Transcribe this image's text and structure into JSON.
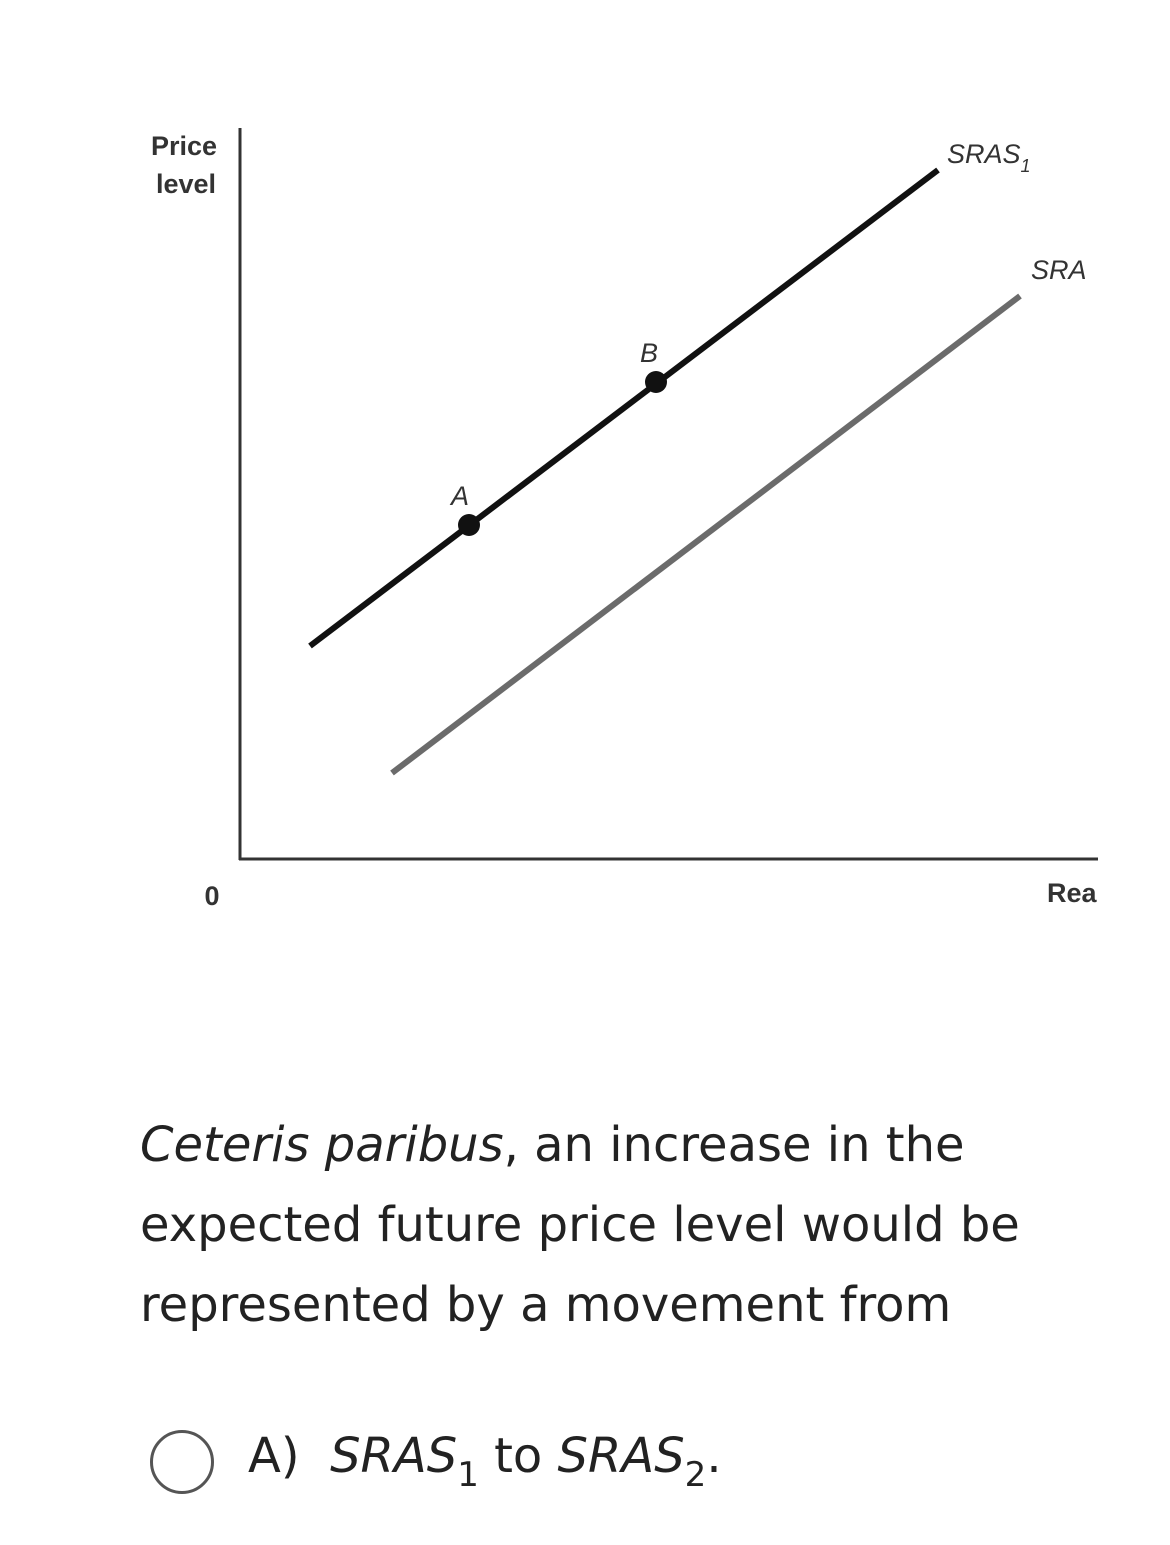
{
  "graph": {
    "y_axis_label_line1": "Price",
    "y_axis_label_line2": "level",
    "origin_label": "0",
    "x_axis_label": "Rea",
    "curves": [
      {
        "label_main": "SRAS",
        "label_sub": "1",
        "color": "#111111"
      },
      {
        "label_main": "SRA",
        "label_sub": "",
        "color": "#6b6b6b"
      }
    ],
    "points": [
      {
        "label": "A"
      },
      {
        "label": "B"
      }
    ]
  },
  "question": {
    "italic_prefix": "Ceteris paribus",
    "text": ", an increase in the expected future price level would be represented by a movement from"
  },
  "options": [
    {
      "letter": "A)",
      "from_main": "SRAS",
      "from_sub": "1",
      "connector": " to ",
      "to_main": "SRAS",
      "to_sub": "2",
      "end": "."
    }
  ]
}
